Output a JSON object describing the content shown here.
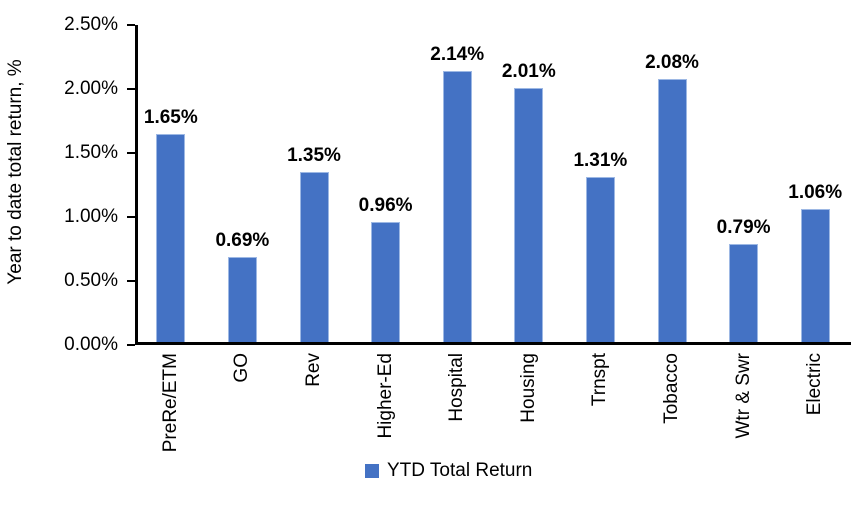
{
  "chart_data": {
    "type": "bar",
    "title": "",
    "ylabel": "Year to date total return, %",
    "xlabel": "",
    "categories": [
      "PreRe/ETM",
      "GO",
      "Rev",
      "Higher-Ed",
      "Hospital",
      "Housing",
      "Trnspt",
      "Tobacco",
      "Wtr & Swr",
      "Electric"
    ],
    "series": [
      {
        "name": "YTD Total Return",
        "values": [
          1.65,
          0.69,
          1.35,
          0.96,
          2.14,
          2.01,
          1.31,
          2.08,
          0.79,
          1.06
        ]
      }
    ],
    "value_labels": [
      "1.65%",
      "0.69%",
      "1.35%",
      "0.96%",
      "2.14%",
      "2.01%",
      "1.31%",
      "2.08%",
      "0.79%",
      "1.06%"
    ],
    "y_ticks": [
      "2.50%",
      "2.00%",
      "1.50%",
      "1.00%",
      "0.50%",
      "0.00%"
    ],
    "ylim": [
      0,
      2.5
    ],
    "grid": false,
    "legend_position": "bottom",
    "legend_label": "YTD Total Return"
  },
  "colors": {
    "bar_fill": "#4472C4",
    "bar_border": "#9DB8E4",
    "axis": "#000000",
    "text": "#000000",
    "background": "#FFFFFF"
  }
}
